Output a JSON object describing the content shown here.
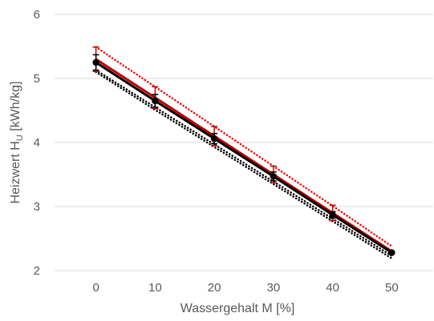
{
  "chart_data": {
    "type": "line",
    "title": "",
    "xlabel": "Wassergehalt M [%]",
    "ylabel": {
      "prefix": "Heizwert H",
      "subscript": "U",
      "suffix": " [kWh/kg]"
    },
    "x": [
      0,
      10,
      20,
      30,
      40,
      50
    ],
    "x_ticks": [
      0,
      10,
      20,
      30,
      40,
      50
    ],
    "y_ticks": [
      2,
      3,
      4,
      5,
      6
    ],
    "xlim": [
      -7,
      57
    ],
    "ylim": [
      2,
      6
    ],
    "grid": "horizontal",
    "legend": "none",
    "series": [
      {
        "style": "solid",
        "color": "#c00000",
        "markers": false,
        "values": [
          5.3,
          4.7,
          4.1,
          3.5,
          2.9,
          2.3
        ],
        "error": [
          0.19,
          0.17,
          0.15,
          0.13,
          0.12,
          0.0
        ],
        "error_color": "#c00000"
      },
      {
        "style": "solid",
        "color": "#000000",
        "markers": true,
        "values": [
          5.25,
          4.65,
          4.06,
          3.47,
          2.87,
          2.28
        ],
        "error": [
          0.12,
          0.1,
          0.08,
          0.07,
          0.05,
          0.0
        ],
        "error_color": "#000000"
      },
      {
        "style": "dotted",
        "color": "#ff0000",
        "markers": false,
        "values": [
          5.49,
          4.87,
          4.25,
          3.63,
          3.01,
          2.38
        ]
      },
      {
        "style": "dotted",
        "color": "#000000",
        "markers": false,
        "values": [
          5.13,
          4.55,
          3.97,
          3.39,
          2.81,
          2.23
        ]
      },
      {
        "style": "dotted",
        "color": "#000000",
        "markers": false,
        "values": [
          5.1,
          4.51,
          3.93,
          3.35,
          2.77,
          2.19
        ]
      }
    ],
    "colors": {
      "grid": "#d9d9d9",
      "text": "#595959"
    }
  }
}
